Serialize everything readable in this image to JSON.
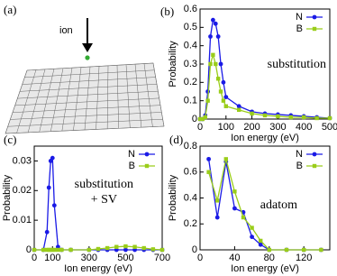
{
  "figure": {
    "panel_a": {
      "label": "(a)",
      "annotation": "ion"
    }
  },
  "chart_data": [
    {
      "type": "line",
      "panel_label": "(b)",
      "xlabel": "Ion energy (eV)",
      "ylabel": "Probability",
      "annotations": [
        "substitution"
      ],
      "x": [
        0,
        10,
        20,
        30,
        40,
        50,
        60,
        70,
        80,
        90,
        100,
        150,
        200,
        250,
        300,
        350,
        400,
        450,
        500
      ],
      "series": [
        {
          "name": "N",
          "color": "#1a1ae6",
          "marker": "circle",
          "values": [
            0,
            0,
            0.02,
            0.15,
            0.45,
            0.54,
            0.52,
            0.45,
            0.3,
            0.2,
            0.12,
            0.07,
            0.04,
            0.03,
            0.025,
            0.02,
            0.015,
            0.01,
            0.005
          ]
        },
        {
          "name": "B",
          "color": "#9acd1a",
          "marker": "square",
          "values": [
            0,
            0,
            0.01,
            0.1,
            0.3,
            0.35,
            0.3,
            0.22,
            0.15,
            0.1,
            0.07,
            0.05,
            0.03,
            0.02,
            0.015,
            0.01,
            0.01,
            0.005,
            0.005
          ]
        }
      ],
      "xlim": [
        0,
        500
      ],
      "xticks": [
        0,
        100,
        200,
        300,
        400,
        500
      ],
      "ylim": [
        0,
        0.6
      ],
      "yticks": [
        0,
        0.1,
        0.2,
        0.3,
        0.4,
        0.5,
        0.6
      ],
      "legend": "upper right"
    },
    {
      "type": "line",
      "panel_label": "(c)",
      "xlabel": "Ion energy (eV)",
      "ylabel": "Probability",
      "annotations": [
        "substitution",
        "+ SV"
      ],
      "x": [
        0,
        50,
        70,
        80,
        90,
        100,
        110,
        130,
        150,
        200,
        300,
        350,
        400,
        450,
        500,
        550,
        600,
        650,
        700
      ],
      "series": [
        {
          "name": "N",
          "color": "#1a1ae6",
          "marker": "circle",
          "values": [
            0,
            0,
            0.006,
            0.021,
            0.03,
            0.031,
            0.015,
            0.001,
            0,
            0,
            0,
            0,
            0,
            0,
            0,
            0,
            0,
            0,
            0
          ]
        },
        {
          "name": "B",
          "color": "#9acd1a",
          "marker": "square",
          "values": [
            0,
            0,
            0,
            0,
            0,
            0,
            0,
            0,
            0,
            0,
            0,
            0.0003,
            0.0006,
            0.001,
            0.0012,
            0.001,
            0.0006,
            0.0002,
            0
          ]
        }
      ],
      "xlim": [
        0,
        700
      ],
      "xticks": [
        0,
        100,
        300,
        500,
        700
      ],
      "ylim": [
        0,
        0.035
      ],
      "yticks": [
        0,
        0.01,
        0.02,
        0.03
      ],
      "legend": "upper right"
    },
    {
      "type": "line",
      "panel_label": "(d)",
      "xlabel": "Ion energy (eV)",
      "ylabel": "Probability",
      "annotations": [
        "adatom"
      ],
      "x": [
        10,
        20,
        30,
        40,
        50,
        60,
        70,
        80,
        100,
        120,
        140
      ],
      "series": [
        {
          "name": "N",
          "color": "#1a1ae6",
          "marker": "circle",
          "values": [
            0.7,
            0.25,
            0.68,
            0.32,
            0.29,
            0.1,
            0.04,
            0,
            0,
            0,
            0
          ]
        },
        {
          "name": "B",
          "color": "#9acd1a",
          "marker": "square",
          "values": [
            0.6,
            0.38,
            0.7,
            0.45,
            0.25,
            0.17,
            0.07,
            0,
            0,
            0,
            0
          ]
        }
      ],
      "xlim": [
        0,
        150
      ],
      "xticks": [
        0,
        40,
        80,
        120
      ],
      "ylim": [
        0,
        0.8
      ],
      "yticks": [
        0,
        0.2,
        0.4,
        0.6,
        0.8
      ],
      "legend": "upper right"
    }
  ]
}
